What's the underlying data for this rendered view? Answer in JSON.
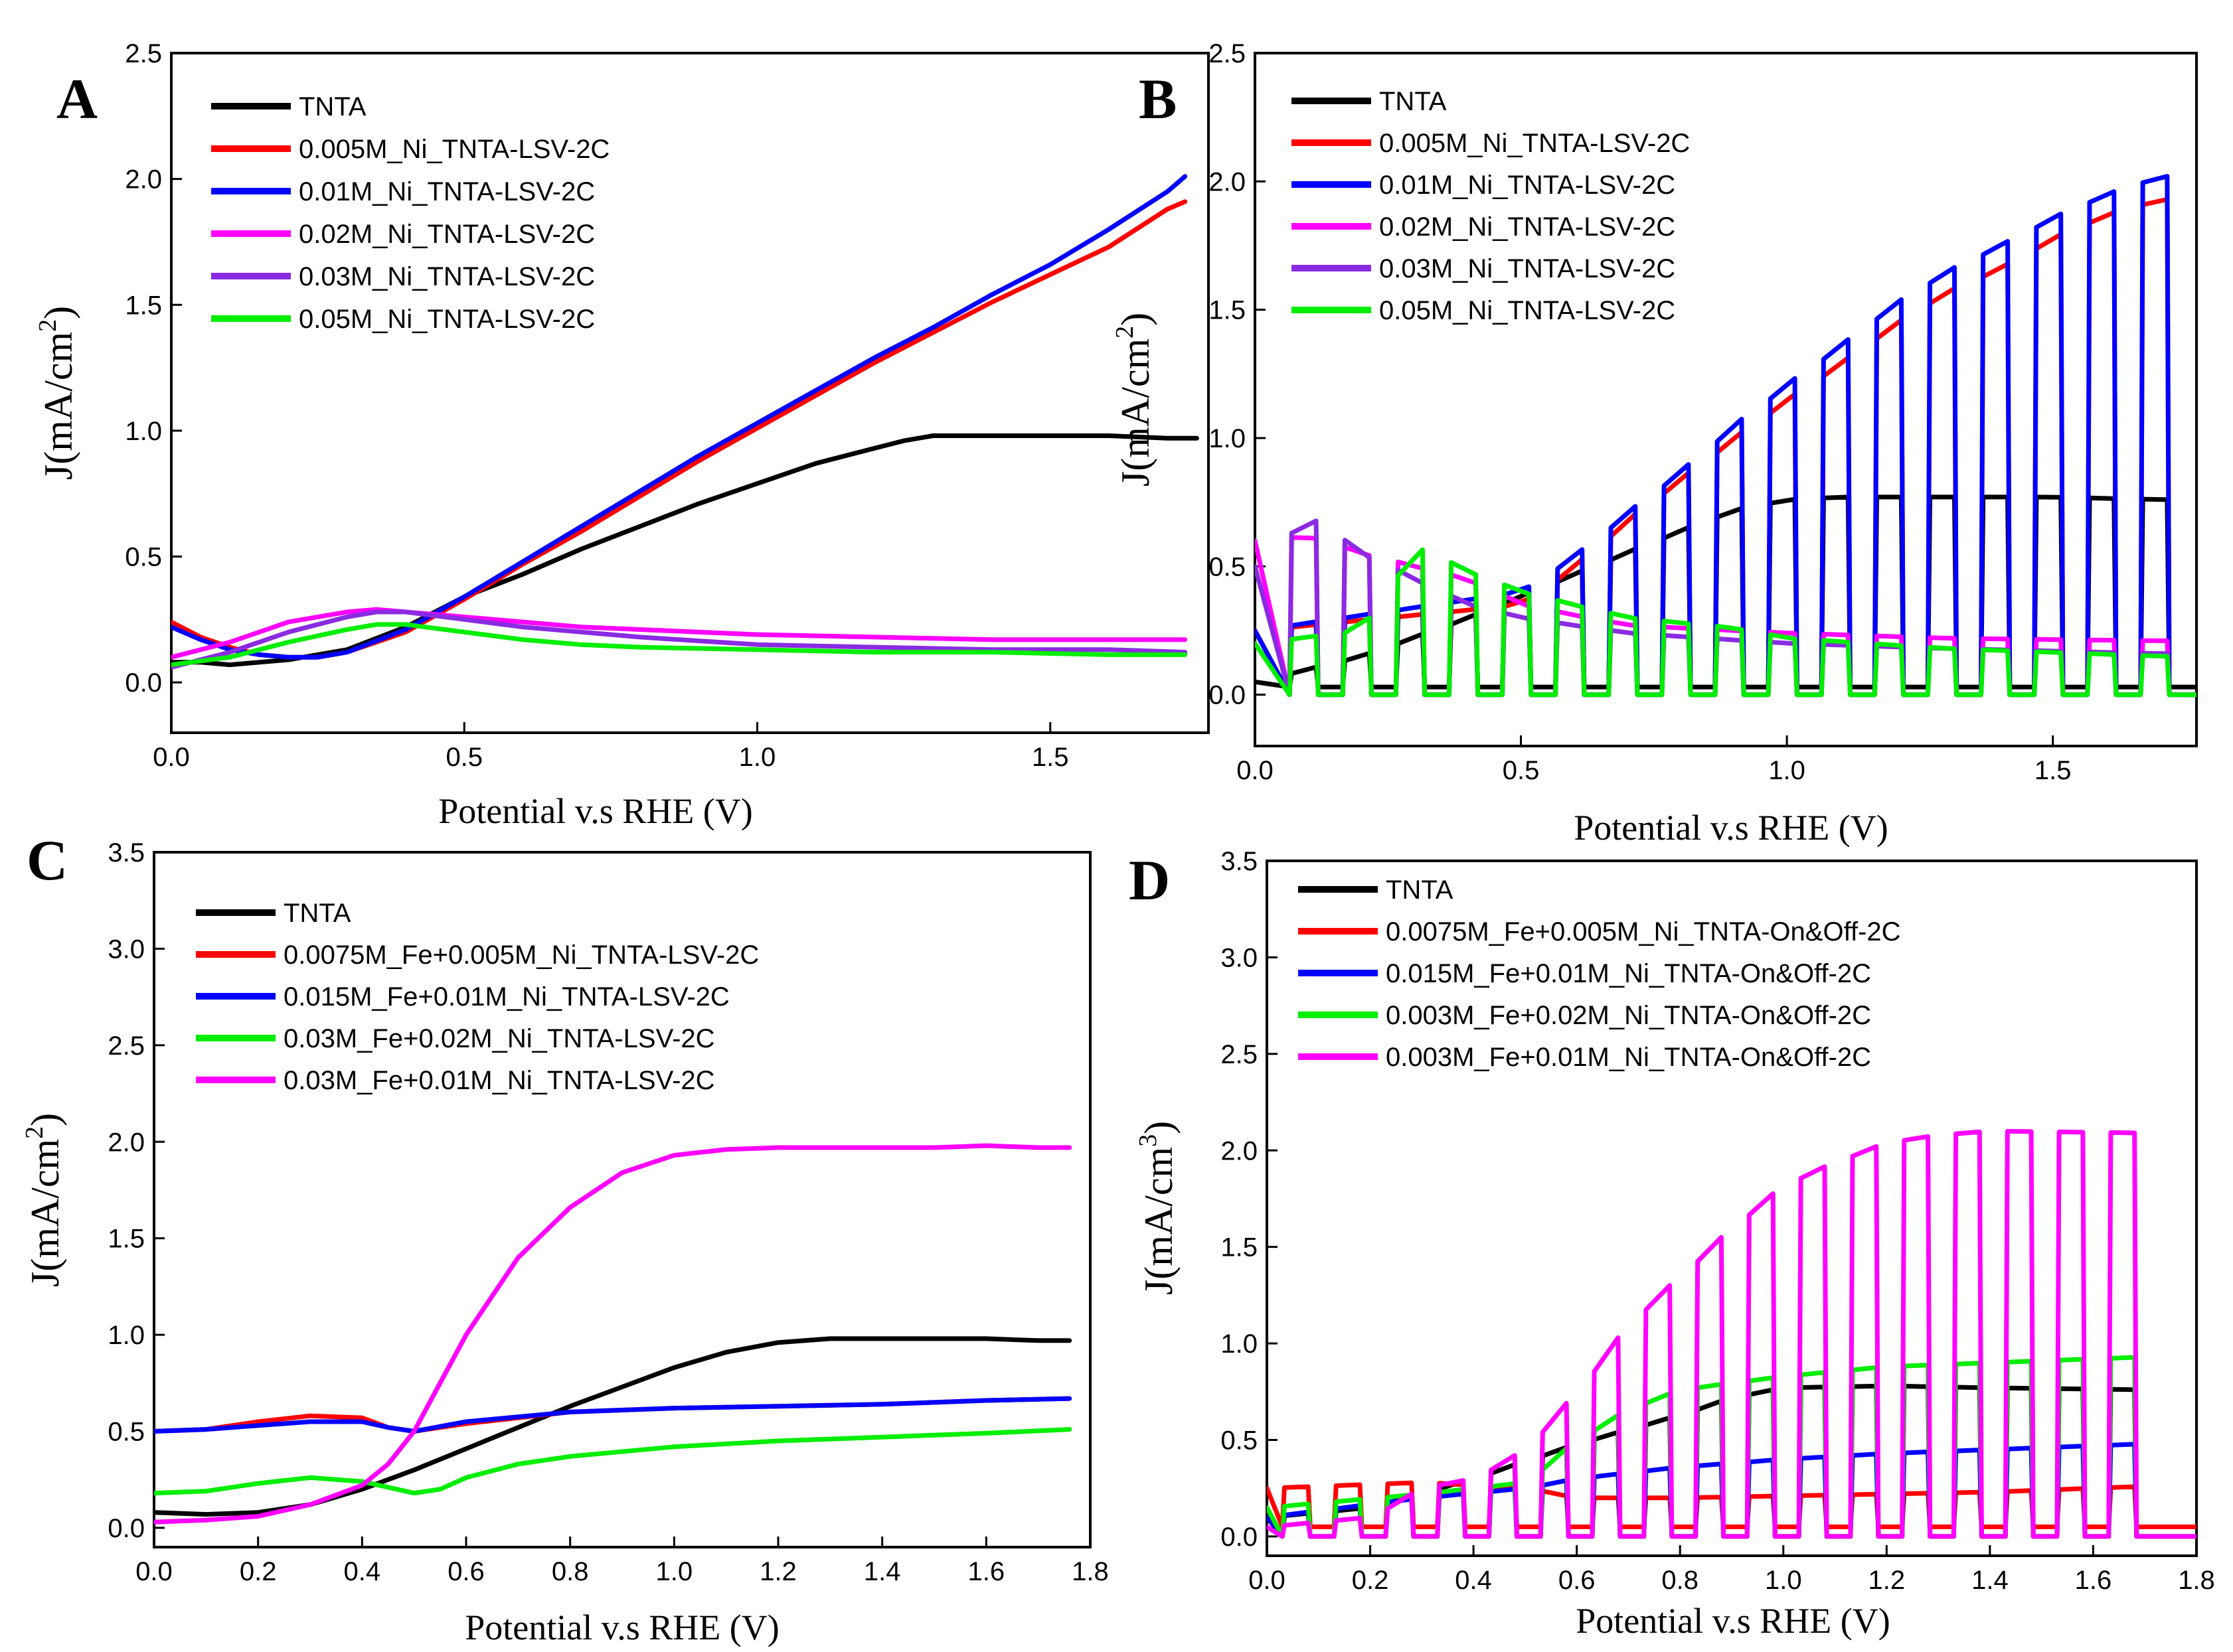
{
  "chart_data": [
    {
      "panel_label": "A",
      "type": "line",
      "xlabel": "Potential v.s RHE (V)",
      "ylabel": "J(mA/cm",
      "ylabel_sup": "2",
      "ylabel_close": ")",
      "xlim": [
        0.0,
        1.77
      ],
      "ylim": [
        -0.2,
        2.5
      ],
      "xticks": [
        "0.0",
        "0.5",
        "1.0",
        "1.5"
      ],
      "xtick_values": [
        0.0,
        0.5,
        1.0,
        1.5
      ],
      "yticks": [
        "0.0",
        "0.5",
        "1.0",
        "1.5",
        "2.0",
        "2.5"
      ],
      "ytick_values": [
        0.0,
        0.5,
        1.0,
        1.5,
        2.0,
        2.5
      ],
      "legend_position": "top-left",
      "series": [
        {
          "name": "TNTA",
          "color": "#000000",
          "x": [
            0.0,
            0.05,
            0.1,
            0.15,
            0.2,
            0.3,
            0.4,
            0.5,
            0.6,
            0.7,
            0.8,
            0.9,
            1.0,
            1.1,
            1.2,
            1.25,
            1.3,
            1.4,
            1.5,
            1.6,
            1.7,
            1.75
          ],
          "y": [
            0.08,
            0.08,
            0.07,
            0.08,
            0.09,
            0.13,
            0.22,
            0.34,
            0.43,
            0.53,
            0.62,
            0.71,
            0.79,
            0.87,
            0.93,
            0.96,
            0.98,
            0.98,
            0.98,
            0.98,
            0.97,
            0.97
          ]
        },
        {
          "name": "0.005M_Ni_TNTA-LSV-2C",
          "color": "#ff0000",
          "x": [
            0.0,
            0.05,
            0.1,
            0.15,
            0.2,
            0.25,
            0.3,
            0.4,
            0.5,
            0.6,
            0.7,
            0.8,
            0.9,
            1.0,
            1.1,
            1.2,
            1.3,
            1.4,
            1.5,
            1.6,
            1.7,
            1.73
          ],
          "y": [
            0.24,
            0.18,
            0.14,
            0.11,
            0.1,
            0.1,
            0.12,
            0.2,
            0.33,
            0.47,
            0.6,
            0.74,
            0.88,
            1.01,
            1.14,
            1.27,
            1.39,
            1.51,
            1.62,
            1.73,
            1.88,
            1.91
          ]
        },
        {
          "name": "0.01M_Ni_TNTA-LSV-2C",
          "color": "#0000ff",
          "x": [
            0.0,
            0.05,
            0.1,
            0.15,
            0.2,
            0.25,
            0.3,
            0.4,
            0.5,
            0.6,
            0.7,
            0.8,
            0.9,
            1.0,
            1.1,
            1.2,
            1.3,
            1.4,
            1.5,
            1.6,
            1.7,
            1.73
          ],
          "y": [
            0.22,
            0.17,
            0.13,
            0.11,
            0.1,
            0.1,
            0.12,
            0.21,
            0.34,
            0.48,
            0.62,
            0.76,
            0.9,
            1.03,
            1.16,
            1.29,
            1.41,
            1.54,
            1.66,
            1.8,
            1.95,
            2.01
          ]
        },
        {
          "name": "0.02M_Ni_TNTA-LSV-2C",
          "color": "#ff00ff",
          "x": [
            0.0,
            0.1,
            0.2,
            0.3,
            0.35,
            0.4,
            0.5,
            0.6,
            0.7,
            0.8,
            1.0,
            1.2,
            1.4,
            1.6,
            1.73
          ],
          "y": [
            0.1,
            0.16,
            0.24,
            0.28,
            0.29,
            0.28,
            0.26,
            0.24,
            0.22,
            0.21,
            0.19,
            0.18,
            0.17,
            0.17,
            0.17
          ]
        },
        {
          "name": "0.03M_Ni_TNTA-LSV-2C",
          "color": "#8a2be2",
          "x": [
            0.0,
            0.1,
            0.2,
            0.3,
            0.35,
            0.4,
            0.5,
            0.6,
            0.7,
            0.8,
            1.0,
            1.2,
            1.4,
            1.6,
            1.73
          ],
          "y": [
            0.06,
            0.12,
            0.2,
            0.26,
            0.28,
            0.28,
            0.25,
            0.22,
            0.2,
            0.18,
            0.15,
            0.14,
            0.13,
            0.13,
            0.12
          ]
        },
        {
          "name": "0.05M_Ni_TNTA-LSV-2C",
          "color": "#00ee00",
          "x": [
            0.0,
            0.1,
            0.2,
            0.3,
            0.35,
            0.4,
            0.5,
            0.6,
            0.7,
            0.8,
            1.0,
            1.2,
            1.4,
            1.6,
            1.73
          ],
          "y": [
            0.07,
            0.1,
            0.16,
            0.21,
            0.23,
            0.23,
            0.2,
            0.17,
            0.15,
            0.14,
            0.13,
            0.12,
            0.12,
            0.11,
            0.11
          ]
        }
      ]
    },
    {
      "panel_label": "B",
      "type": "line",
      "xlabel": "Potential v.s RHE (V)",
      "ylabel": "J(mA/cm",
      "ylabel_sup": "2",
      "ylabel_close": ")",
      "xlim": [
        0.0,
        1.77
      ],
      "ylim": [
        -0.2,
        2.5
      ],
      "xticks": [
        "0.0",
        "0.5",
        "1.0",
        "1.5"
      ],
      "xtick_values": [
        0.0,
        0.5,
        1.0,
        1.5
      ],
      "yticks": [
        "0.0",
        "0.5",
        "1.0",
        "1.5",
        "2.0",
        "2.5"
      ],
      "ytick_values": [
        0.0,
        0.5,
        1.0,
        1.5,
        2.0,
        2.5
      ],
      "legend_position": "top-left",
      "chopped": {
        "period": 0.1,
        "on_start": 0.065,
        "on_width": 0.05,
        "end": 1.73
      },
      "series": [
        {
          "name": "TNTA",
          "color": "#000000",
          "off": 0.03,
          "envelope_x": [
            0.0,
            0.2,
            0.4,
            0.6,
            0.8,
            0.9,
            1.0,
            1.1,
            1.3,
            1.5,
            1.7
          ],
          "envelope_y": [
            0.05,
            0.15,
            0.3,
            0.47,
            0.64,
            0.72,
            0.76,
            0.77,
            0.77,
            0.77,
            0.76
          ]
        },
        {
          "name": "0.005M_Ni_TNTA-LSV-2C",
          "color": "#ff0000",
          "off": 0.0,
          "envelope_x": [
            0.0,
            0.5,
            0.6,
            0.7,
            0.8,
            0.9,
            1.0,
            1.1,
            1.2,
            1.3,
            1.4,
            1.5,
            1.6,
            1.7
          ],
          "envelope_y": [
            0.25,
            0.35,
            0.5,
            0.68,
            0.84,
            1.0,
            1.15,
            1.29,
            1.44,
            1.57,
            1.66,
            1.78,
            1.87,
            1.93
          ]
        },
        {
          "name": "0.01M_Ni_TNTA-LSV-2C",
          "color": "#0000ff",
          "off": 0.0,
          "envelope_x": [
            0.0,
            0.5,
            0.6,
            0.7,
            0.8,
            0.9,
            1.0,
            1.1,
            1.2,
            1.3,
            1.4,
            1.5,
            1.6,
            1.7
          ],
          "envelope_y": [
            0.25,
            0.4,
            0.54,
            0.71,
            0.87,
            1.05,
            1.21,
            1.36,
            1.52,
            1.65,
            1.75,
            1.86,
            1.95,
            2.02
          ]
        },
        {
          "name": "0.02M_Ni_TNTA-LSV-2C",
          "color": "#ff00ff",
          "off": 0.0,
          "envelope_x": [
            0.0,
            0.1,
            0.2,
            0.3,
            0.4,
            0.5,
            0.7,
            1.0,
            1.3,
            1.7
          ],
          "envelope_y": [
            0.6,
            0.62,
            0.55,
            0.5,
            0.45,
            0.35,
            0.27,
            0.24,
            0.22,
            0.21
          ]
        },
        {
          "name": "0.03M_Ni_TNTA-LSV-2C",
          "color": "#8a2be2",
          "off": 0.0,
          "envelope_x": [
            0.0,
            0.1,
            0.2,
            0.3,
            0.4,
            0.5,
            0.7,
            1.0,
            1.3,
            1.7
          ],
          "envelope_y": [
            0.5,
            0.7,
            0.55,
            0.45,
            0.35,
            0.3,
            0.24,
            0.2,
            0.18,
            0.16
          ]
        },
        {
          "name": "0.05M_Ni_TNTA-LSV-2C",
          "color": "#00ee00",
          "off": 0.0,
          "envelope_x": [
            0.0,
            0.2,
            0.3,
            0.4,
            0.5,
            0.7,
            0.9,
            1.0,
            1.3,
            1.7
          ],
          "envelope_y": [
            0.2,
            0.25,
            0.58,
            0.48,
            0.4,
            0.3,
            0.26,
            0.22,
            0.18,
            0.15
          ]
        }
      ]
    },
    {
      "panel_label": "C",
      "type": "line",
      "xlabel": "Potential v.s RHE (V)",
      "ylabel": "J(mA/cm",
      "ylabel_sup": "2",
      "ylabel_close": ")",
      "xlim": [
        0.0,
        1.8
      ],
      "ylim": [
        -0.1,
        3.5
      ],
      "xticks": [
        "0.0",
        "0.2",
        "0.4",
        "0.6",
        "0.8",
        "1.0",
        "1.2",
        "1.4",
        "1.6",
        "1.8"
      ],
      "xtick_values": [
        0.0,
        0.2,
        0.4,
        0.6,
        0.8,
        1.0,
        1.2,
        1.4,
        1.6,
        1.8
      ],
      "yticks": [
        "0.0",
        "0.5",
        "1.0",
        "1.5",
        "2.0",
        "2.5",
        "3.0",
        "3.5"
      ],
      "ytick_values": [
        0.0,
        0.5,
        1.0,
        1.5,
        2.0,
        2.5,
        3.0,
        3.5
      ],
      "legend_position": "top-left",
      "series": [
        {
          "name": "TNTA",
          "color": "#000000",
          "x": [
            0.0,
            0.1,
            0.2,
            0.3,
            0.4,
            0.5,
            0.6,
            0.7,
            0.8,
            0.9,
            1.0,
            1.1,
            1.2,
            1.3,
            1.4,
            1.5,
            1.6,
            1.7,
            1.76
          ],
          "y": [
            0.08,
            0.07,
            0.08,
            0.12,
            0.2,
            0.3,
            0.41,
            0.52,
            0.63,
            0.73,
            0.83,
            0.91,
            0.96,
            0.98,
            0.98,
            0.98,
            0.98,
            0.97,
            0.97
          ]
        },
        {
          "name": "0.0075M_Fe+0.005M_Ni_TNTA-LSV-2C",
          "color": "#ff0000",
          "x": [
            0.0,
            0.1,
            0.2,
            0.3,
            0.4,
            0.45,
            0.5,
            0.6,
            0.8,
            1.0,
            1.2,
            1.4,
            1.6,
            1.76
          ],
          "y": [
            0.5,
            0.51,
            0.55,
            0.58,
            0.57,
            0.52,
            0.5,
            0.54,
            0.6,
            0.62,
            0.63,
            0.64,
            0.66,
            0.67
          ]
        },
        {
          "name": "0.015M_Fe+0.01M_Ni_TNTA-LSV-2C",
          "color": "#0000ff",
          "x": [
            0.0,
            0.1,
            0.2,
            0.3,
            0.4,
            0.45,
            0.5,
            0.6,
            0.8,
            1.0,
            1.2,
            1.4,
            1.6,
            1.76
          ],
          "y": [
            0.5,
            0.51,
            0.53,
            0.55,
            0.55,
            0.52,
            0.5,
            0.55,
            0.6,
            0.62,
            0.63,
            0.64,
            0.66,
            0.67
          ]
        },
        {
          "name": "0.03M_Fe+0.02M_Ni_TNTA-LSV-2C",
          "color": "#00ee00",
          "x": [
            0.0,
            0.1,
            0.2,
            0.3,
            0.4,
            0.5,
            0.55,
            0.6,
            0.7,
            0.8,
            1.0,
            1.2,
            1.4,
            1.6,
            1.76
          ],
          "y": [
            0.18,
            0.19,
            0.23,
            0.26,
            0.24,
            0.18,
            0.2,
            0.26,
            0.33,
            0.37,
            0.42,
            0.45,
            0.47,
            0.49,
            0.51
          ]
        },
        {
          "name": "0.03M_Fe+0.01M_Ni_TNTA-LSV-2C",
          "color": "#ff00ff",
          "x": [
            0.0,
            0.1,
            0.2,
            0.3,
            0.4,
            0.45,
            0.5,
            0.55,
            0.6,
            0.7,
            0.8,
            0.9,
            1.0,
            1.1,
            1.2,
            1.3,
            1.4,
            1.5,
            1.6,
            1.7,
            1.76
          ],
          "y": [
            0.03,
            0.04,
            0.06,
            0.12,
            0.22,
            0.33,
            0.5,
            0.75,
            1.0,
            1.4,
            1.66,
            1.84,
            1.93,
            1.96,
            1.97,
            1.97,
            1.97,
            1.97,
            1.98,
            1.97,
            1.97
          ]
        }
      ]
    },
    {
      "panel_label": "D",
      "type": "line",
      "xlabel": "Potential v.s RHE (V)",
      "ylabel": "J(mA/cm",
      "ylabel_sup": "3",
      "ylabel_close": ")",
      "xlim": [
        0.0,
        1.8
      ],
      "ylim": [
        -0.1,
        3.5
      ],
      "xticks": [
        "0.0",
        "0.2",
        "0.4",
        "0.6",
        "0.8",
        "1.0",
        "1.2",
        "1.4",
        "1.6",
        "1.8"
      ],
      "xtick_values": [
        0.0,
        0.2,
        0.4,
        0.6,
        0.8,
        1.0,
        1.2,
        1.4,
        1.6,
        1.8
      ],
      "yticks": [
        "0.0",
        "0.5",
        "1.0",
        "1.5",
        "2.0",
        "2.5",
        "3.0",
        "3.5"
      ],
      "ytick_values": [
        0.0,
        0.5,
        1.0,
        1.5,
        2.0,
        2.5,
        3.0,
        3.5
      ],
      "legend_position": "top-left",
      "chopped": {
        "period": 0.1,
        "on_start": 0.03,
        "on_width": 0.05,
        "end": 1.73
      },
      "series": [
        {
          "name": "TNTA",
          "color": "#000000",
          "off": 0.0,
          "envelope_x": [
            0.0,
            0.2,
            0.4,
            0.6,
            0.8,
            0.9,
            1.0,
            1.2,
            1.4,
            1.7
          ],
          "envelope_y": [
            0.1,
            0.15,
            0.3,
            0.48,
            0.63,
            0.72,
            0.77,
            0.78,
            0.77,
            0.76
          ]
        },
        {
          "name": "0.0075M_Fe+0.005M_Ni_TNTA-On&Off-2C",
          "color": "#ff0000",
          "off": 0.05,
          "envelope_x": [
            0.0,
            0.3,
            0.5,
            0.6,
            0.8,
            1.0,
            1.2,
            1.4,
            1.6,
            1.7
          ],
          "envelope_y": [
            0.25,
            0.28,
            0.25,
            0.2,
            0.2,
            0.21,
            0.22,
            0.23,
            0.25,
            0.26
          ]
        },
        {
          "name": "0.015M_Fe+0.01M_Ni_TNTA-On&Off-2C",
          "color": "#0000ff",
          "off": 0.0,
          "envelope_x": [
            0.0,
            0.3,
            0.5,
            0.6,
            0.8,
            1.0,
            1.2,
            1.4,
            1.6,
            1.7
          ],
          "envelope_y": [
            0.1,
            0.2,
            0.25,
            0.3,
            0.36,
            0.4,
            0.43,
            0.45,
            0.47,
            0.48
          ]
        },
        {
          "name": "0.003M_Fe+0.02M_Ni_TNTA-On&Off-2C",
          "color": "#00ee00",
          "off": 0.0,
          "envelope_x": [
            0.0,
            0.3,
            0.5,
            0.6,
            0.7,
            0.8,
            1.0,
            1.2,
            1.4,
            1.6,
            1.7
          ],
          "envelope_y": [
            0.15,
            0.22,
            0.28,
            0.5,
            0.66,
            0.76,
            0.83,
            0.88,
            0.9,
            0.92,
            0.93
          ]
        },
        {
          "name": "0.003M_Fe+0.01M_Ni_TNTA-On&Off-2C",
          "color": "#ff00ff",
          "off": 0.0,
          "envelope_x": [
            0.0,
            0.2,
            0.3,
            0.4,
            0.5,
            0.6,
            0.7,
            0.8,
            0.9,
            1.0,
            1.1,
            1.2,
            1.3,
            1.4,
            1.7
          ],
          "envelope_y": [
            0.05,
            0.1,
            0.25,
            0.3,
            0.45,
            0.75,
            1.1,
            1.35,
            1.6,
            1.82,
            1.94,
            2.04,
            2.08,
            2.1,
            2.09
          ]
        }
      ]
    }
  ]
}
